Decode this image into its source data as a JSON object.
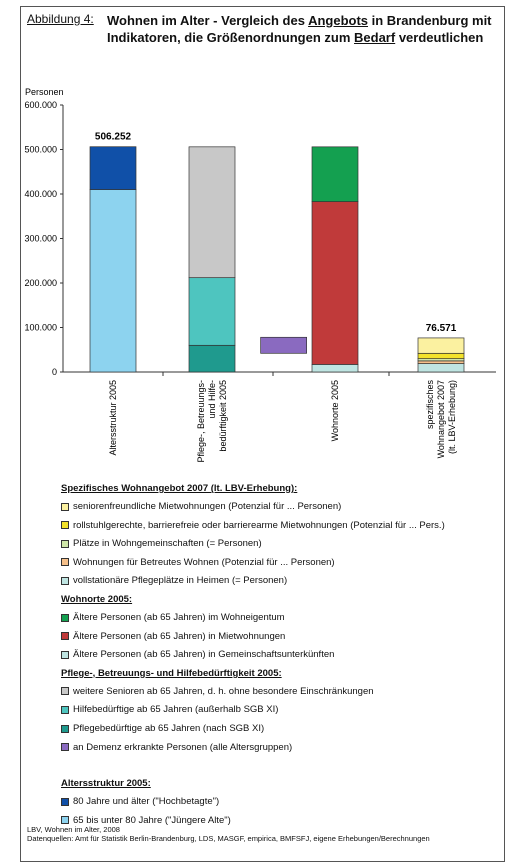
{
  "figure_label": "Abbildung 4:",
  "title": {
    "part1": "Wohnen im Alter - Vergleich des ",
    "u1": "Angebots",
    "part2": " in Brandenburg mit Indikatoren, die Größenordnungen zum ",
    "u2": "Bedarf",
    "part3": " verdeutlichen"
  },
  "chart_data": {
    "type": "bar",
    "stacked": true,
    "ylabel": "Personen",
    "ylim": [
      0,
      600000
    ],
    "yticks": [
      "0",
      "100.000",
      "200.000",
      "300.000",
      "400.000",
      "500.000",
      "600.000"
    ],
    "categories": [
      "Altersstruktur 2005",
      "Pflege-, Betreuungs- und Hilfe-bedürftigkeit 2005",
      "Wohnorte 2005",
      "spezifisches Wohnangebot 2007 (lt. LBV-Erhebung)"
    ],
    "category_lines": [
      [
        "Altersstruktur 2005"
      ],
      [
        "Pflege-, Betreuungs-",
        "und Hilfe-",
        "bedürftigkeit 2005"
      ],
      [
        "Wohnorte 2005"
      ],
      [
        "spezifisches",
        "Wohnangebot 2007",
        "(lt. LBV-Erhebung)"
      ]
    ],
    "data_labels": [
      {
        "category": 0,
        "value": 506252,
        "text": "506.252"
      },
      {
        "category": 3,
        "value": 76571,
        "text": "76.571"
      }
    ],
    "segments": [
      {
        "category": 0,
        "base": 0,
        "value": 410000,
        "color": "#8dd3ef",
        "legend": 15
      },
      {
        "category": 0,
        "base": 410000,
        "value": 96252,
        "color": "#1050a8",
        "legend": 14
      },
      {
        "category": 1,
        "base": 0,
        "value": 60000,
        "color": "#1f9a8e",
        "legend": 11
      },
      {
        "category": 1,
        "base": 60000,
        "value": 152000,
        "color": "#4ec5bf",
        "legend": 10
      },
      {
        "category": 1,
        "base": 212000,
        "value": 294000,
        "color": "#c8c8c8",
        "legend": 9
      },
      {
        "category": 1.55,
        "base": 42000,
        "value": 36000,
        "color": "#8a6ac0",
        "legend": 12,
        "narrow": true
      },
      {
        "category": 2,
        "base": 0,
        "value": 17000,
        "color": "#bfe5e2",
        "legend": 8
      },
      {
        "category": 2,
        "base": 17000,
        "value": 366000,
        "color": "#c03a3a",
        "legend": 7
      },
      {
        "category": 2,
        "base": 383000,
        "value": 123000,
        "color": "#14a050",
        "legend": 6
      },
      {
        "category": 3,
        "base": 0,
        "value": 19000,
        "color": "#bfe5e2",
        "legend": 4
      },
      {
        "category": 3,
        "base": 19000,
        "value": 6000,
        "color": "#f6c08a",
        "legend": 3
      },
      {
        "category": 3,
        "base": 25000,
        "value": 5000,
        "color": "#cfe6a8",
        "legend": 2
      },
      {
        "category": 3,
        "base": 30000,
        "value": 12000,
        "color": "#f2e22a",
        "legend": 1
      },
      {
        "category": 3,
        "base": 42000,
        "value": 34571,
        "color": "#fbf1a0",
        "legend": 0
      }
    ]
  },
  "legend": {
    "sections": [
      {
        "heading": "Spezifisches Wohnangebot 2007 (lt. LBV-Erhebung):",
        "items": [
          {
            "text": "seniorenfreundliche Mietwohnungen (Potenzial für ... Personen)",
            "color": "#fbf1a0"
          },
          {
            "text": "rollstuhlgerechte, barrierefreie oder barrierearme Mietwohnungen (Potenzial für ... Pers.)",
            "color": "#f2e22a"
          },
          {
            "text": "Plätze in Wohngemeinschaften (= Personen)",
            "color": "#cfe6a8"
          },
          {
            "text": "Wohnungen für Betreutes Wohnen (Potenzial für ... Personen)",
            "color": "#f6c08a"
          },
          {
            "text": "vollstationäre Pflegeplätze in Heimen (= Personen)",
            "color": "#bfe5e2"
          }
        ]
      },
      {
        "heading": "Wohnorte 2005:",
        "items": [
          {
            "text": "Ältere Personen (ab 65 Jahren) im Wohneigentum",
            "color": "#14a050"
          },
          {
            "text": "Ältere Personen (ab 65 Jahren) in Mietwohnungen",
            "color": "#c03a3a"
          },
          {
            "text": "Ältere Personen (ab 65 Jahren) in Gemeinschaftsunterkünften",
            "color": "#bfe5e2"
          }
        ]
      },
      {
        "heading": "Pflege-, Betreuungs- und Hilfebedürftigkeit 2005:",
        "items": [
          {
            "text": "weitere Senioren ab 65 Jahren, d. h. ohne besondere Einschränkungen",
            "color": "#c8c8c8"
          },
          {
            "text": "Hilfebedürftige ab 65 Jahren (außerhalb SGB XI)",
            "color": "#4ec5bf"
          },
          {
            "text": "Pflegebedürftige ab 65 Jahren (nach SGB XI)",
            "color": "#1f9a8e"
          },
          {
            "text": "an Demenz erkrankte Personen (alle Altersgruppen)",
            "color": "#8a6ac0"
          }
        ]
      },
      {
        "heading": "Altersstruktur 2005:",
        "items": [
          {
            "text": "80 Jahre und älter (\"Hochbetagte\")",
            "color": "#1050a8"
          },
          {
            "text": "65 bis unter 80 Jahre (\"Jüngere Alte\")",
            "color": "#8dd3ef"
          }
        ]
      }
    ]
  },
  "footer": {
    "line1": "LBV, Wohnen im Alter, 2008",
    "line2": "Datenquellen: Amt für Statistik Berlin-Brandenburg, LDS, MASGF, empirica, BMFSFJ, eigene Erhebungen/Berechnungen"
  }
}
